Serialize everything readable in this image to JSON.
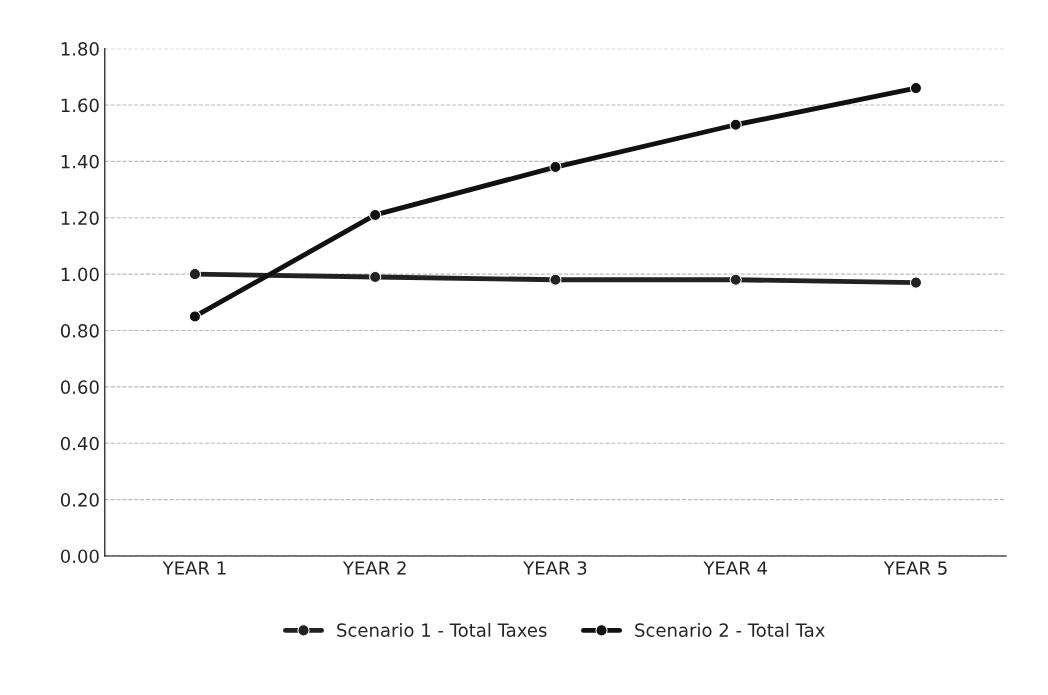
{
  "chart_data": {
    "type": "line",
    "categories": [
      "YEAR 1",
      "YEAR 2",
      "YEAR 3",
      "YEAR 4",
      "YEAR 5"
    ],
    "series": [
      {
        "name": "Scenario 1 - Total Taxes",
        "color": "#222222",
        "values": [
          1.0,
          0.99,
          0.98,
          0.98,
          0.97
        ]
      },
      {
        "name": "Scenario 2 - Total Tax",
        "color": "#111111",
        "values": [
          0.85,
          1.21,
          1.38,
          1.53,
          1.66
        ]
      }
    ],
    "ylim": [
      0,
      1.8
    ],
    "yticks": [
      {
        "value": 0,
        "label": "0.00"
      },
      {
        "value": 0.2,
        "label": "0.20"
      },
      {
        "value": 0.4,
        "label": "0.40"
      },
      {
        "value": 0.6,
        "label": "0.60"
      },
      {
        "value": 0.8,
        "label": "0.80"
      },
      {
        "value": 1.0,
        "label": "1.00"
      },
      {
        "value": 1.2,
        "label": "1.20"
      },
      {
        "value": 1.4,
        "label": "1.40"
      },
      {
        "value": 1.6,
        "label": "1.60"
      },
      {
        "value": 1.8,
        "label": "1.80"
      }
    ],
    "grid": "y",
    "legend": "bottom",
    "marker": "circle",
    "line_style": "solid"
  }
}
